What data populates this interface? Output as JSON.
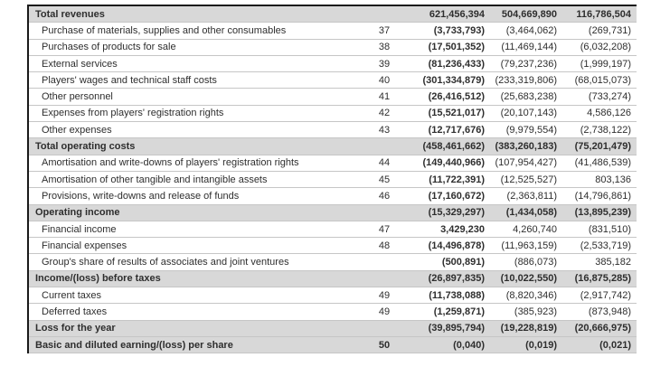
{
  "document": {
    "type": "income-statement-table",
    "columns": {
      "label": "",
      "note": "",
      "values": [
        "current_year",
        "prior_year",
        "change"
      ]
    }
  },
  "colors": {
    "band_gray": "#d8d8d8",
    "rule_dark": "#1a1a1a",
    "rule_light": "#c6c6c6",
    "text": "#2e2e2e"
  },
  "table": {
    "rows": [
      {
        "label": "Total revenues",
        "note": "",
        "values": [
          "621,456,394",
          "504,669,890",
          "116,786,504"
        ],
        "emphasis": true
      },
      {
        "label": "Purchase of materials, supplies and other consumables",
        "note": "37",
        "values": [
          "(3,733,793)",
          "(3,464,062)",
          "(269,731)"
        ],
        "emphasis": false
      },
      {
        "label": "Purchases of products for sale",
        "note": "38",
        "values": [
          "(17,501,352)",
          "(11,469,144)",
          "(6,032,208)"
        ],
        "emphasis": false
      },
      {
        "label": "External services",
        "note": "39",
        "values": [
          "(81,236,433)",
          "(79,237,236)",
          "(1,999,197)"
        ],
        "emphasis": false
      },
      {
        "label": "Players' wages and technical staff costs",
        "note": "40",
        "values": [
          "(301,334,879)",
          "(233,319,806)",
          "(68,015,073)"
        ],
        "emphasis": false
      },
      {
        "label": "Other personnel",
        "note": "41",
        "values": [
          "(26,416,512)",
          "(25,683,238)",
          "(733,274)"
        ],
        "emphasis": false
      },
      {
        "label": "Expenses from players' registration rights",
        "note": "42",
        "values": [
          "(15,521,017)",
          "(20,107,143)",
          "4,586,126"
        ],
        "emphasis": false
      },
      {
        "label": "Other expenses",
        "note": "43",
        "values": [
          "(12,717,676)",
          "(9,979,554)",
          "(2,738,122)"
        ],
        "emphasis": false
      },
      {
        "label": "Total operating costs",
        "note": "",
        "values": [
          "(458,461,662)",
          "(383,260,183)",
          "(75,201,479)"
        ],
        "emphasis": true
      },
      {
        "label": "Amortisation and write-downs of players' registration rights",
        "note": "44",
        "values": [
          "(149,440,966)",
          "(107,954,427)",
          "(41,486,539)"
        ],
        "emphasis": false
      },
      {
        "label": "Amortisation of other tangible and intangible assets",
        "note": "45",
        "values": [
          "(11,722,391)",
          "(12,525,527)",
          "803,136"
        ],
        "emphasis": false
      },
      {
        "label": "Provisions, write-downs and release of funds",
        "note": "46",
        "values": [
          "(17,160,672)",
          "(2,363,811)",
          "(14,796,861)"
        ],
        "emphasis": false
      },
      {
        "label": "Operating income",
        "note": "",
        "values": [
          "(15,329,297)",
          "(1,434,058)",
          "(13,895,239)"
        ],
        "emphasis": true
      },
      {
        "label": "Financial income",
        "note": "47",
        "values": [
          "3,429,230",
          "4,260,740",
          "(831,510)"
        ],
        "emphasis": false
      },
      {
        "label": "Financial expenses",
        "note": "48",
        "values": [
          "(14,496,878)",
          "(11,963,159)",
          "(2,533,719)"
        ],
        "emphasis": false
      },
      {
        "label": "Group's share of results of associates and joint ventures",
        "note": "",
        "values": [
          "(500,891)",
          "(886,073)",
          "385,182"
        ],
        "emphasis": false
      },
      {
        "label": "Income/(loss) before taxes",
        "note": "",
        "values": [
          "(26,897,835)",
          "(10,022,550)",
          "(16,875,285)"
        ],
        "emphasis": true
      },
      {
        "label": "Current taxes",
        "note": "49",
        "values": [
          "(11,738,088)",
          "(8,820,346)",
          "(2,917,742)"
        ],
        "emphasis": false
      },
      {
        "label": "Deferred taxes",
        "note": "49",
        "values": [
          "(1,259,871)",
          "(385,923)",
          "(873,948)"
        ],
        "emphasis": false
      },
      {
        "label": "Loss for the year",
        "note": "",
        "values": [
          "(39,895,794)",
          "(19,228,819)",
          "(20,666,975)"
        ],
        "emphasis": true
      },
      {
        "label": "Basic and diluted earning/(loss) per share",
        "note": "50",
        "values": [
          "(0,040)",
          "(0,019)",
          "(0,021)"
        ],
        "emphasis": true
      }
    ]
  }
}
